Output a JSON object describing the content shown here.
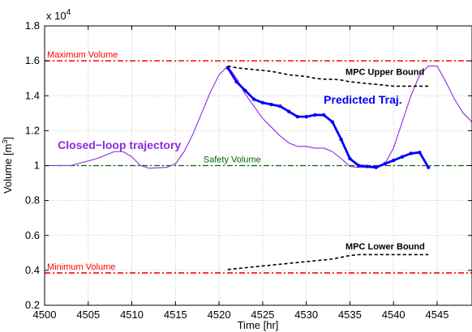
{
  "chart_data": {
    "type": "line",
    "xlabel": "Time [hr]",
    "ylabel": "Volume [m",
    "ylabel_sup": "3",
    "ylabel_close": "]",
    "exponent_prefix": "x 10",
    "exponent_power": "4",
    "xlim": [
      4500,
      4549
    ],
    "ylim": [
      0.2,
      1.8
    ],
    "xticks": [
      "4500",
      "4505",
      "4510",
      "4515",
      "4520",
      "4525",
      "4530",
      "4535",
      "4540",
      "4545"
    ],
    "yticks": [
      "0.2",
      "0.4",
      "0.6",
      "0.8",
      "1",
      "1.2",
      "1.4",
      "1.6",
      "1.8"
    ],
    "grid": true,
    "reference_lines": [
      {
        "label": "Maximum Volume",
        "y": 1.6,
        "color": "#ff0000",
        "style": "dash-dot"
      },
      {
        "label": "Safety Volume",
        "y": 1.0,
        "color": "#006600",
        "style": "dash-dot"
      },
      {
        "label": "Minimum Volume",
        "y": 0.385,
        "color": "#ff0000",
        "style": "dash-dot"
      }
    ],
    "series": [
      {
        "name": "Closed−loop trajectory",
        "color": "#8a2be2",
        "style": "solid",
        "x": [
          4500,
          4503,
          4506,
          4508,
          4509,
          4510,
          4511,
          4512,
          4514,
          4515,
          4516,
          4517,
          4518,
          4519,
          4520,
          4521,
          4522,
          4523,
          4524,
          4525,
          4526,
          4527,
          4528,
          4529,
          4530,
          4531,
          4532,
          4533,
          4534,
          4535,
          4536,
          4537,
          4538,
          4539,
          4540,
          4541,
          4542,
          4543,
          4544,
          4545,
          4546,
          4547,
          4548,
          4549
        ],
        "y": [
          1.0,
          1.0,
          1.04,
          1.08,
          1.08,
          1.05,
          1.0,
          0.985,
          0.99,
          1.01,
          1.08,
          1.18,
          1.3,
          1.42,
          1.52,
          1.57,
          1.5,
          1.41,
          1.34,
          1.27,
          1.22,
          1.17,
          1.13,
          1.11,
          1.11,
          1.1,
          1.1,
          1.08,
          1.04,
          0.995,
          0.99,
          0.99,
          0.985,
          1.01,
          1.1,
          1.25,
          1.4,
          1.52,
          1.57,
          1.57,
          1.48,
          1.38,
          1.3,
          1.25
        ]
      },
      {
        "name": "Predicted Traj.",
        "color": "#0000ff",
        "style": "solid-markers",
        "x": [
          4521,
          4522,
          4523,
          4524,
          4525,
          4526,
          4527,
          4528,
          4529,
          4530,
          4531,
          4532,
          4533,
          4534,
          4535,
          4536,
          4537,
          4538,
          4539,
          4540,
          4541,
          4542,
          4543,
          4544
        ],
        "y": [
          1.56,
          1.48,
          1.43,
          1.38,
          1.36,
          1.35,
          1.34,
          1.31,
          1.28,
          1.28,
          1.29,
          1.29,
          1.25,
          1.15,
          1.04,
          1.0,
          0.995,
          0.99,
          1.01,
          1.03,
          1.05,
          1.07,
          1.075,
          0.99
        ]
      },
      {
        "name": "MPC Upper Bound",
        "color": "#000000",
        "style": "dashed",
        "x": [
          4521,
          4522,
          4523,
          4524,
          4525,
          4526,
          4527,
          4528,
          4529,
          4530,
          4531,
          4532,
          4533,
          4534,
          4535,
          4536,
          4537,
          4538,
          4539,
          4540,
          4541,
          4542,
          4543,
          4544
        ],
        "y": [
          1.57,
          1.56,
          1.555,
          1.55,
          1.545,
          1.54,
          1.53,
          1.52,
          1.515,
          1.51,
          1.5,
          1.495,
          1.495,
          1.49,
          1.48,
          1.475,
          1.47,
          1.465,
          1.46,
          1.455,
          1.455,
          1.455,
          1.455,
          1.455
        ]
      },
      {
        "name": "MPC Lower Bound",
        "color": "#000000",
        "style": "dashed",
        "x": [
          4521,
          4522,
          4523,
          4524,
          4525,
          4526,
          4527,
          4528,
          4529,
          4530,
          4531,
          4532,
          4533,
          4534,
          4535,
          4536,
          4537,
          4538,
          4539,
          4540,
          4541,
          4542,
          4543,
          4544
        ],
        "y": [
          0.405,
          0.41,
          0.415,
          0.42,
          0.425,
          0.43,
          0.435,
          0.44,
          0.445,
          0.45,
          0.455,
          0.46,
          0.465,
          0.475,
          0.485,
          0.49,
          0.49,
          0.49,
          0.49,
          0.49,
          0.49,
          0.49,
          0.49,
          0.49
        ]
      }
    ],
    "annotations": [
      {
        "text": "Closed−loop trajectory",
        "x": 4501.5,
        "y": 1.095,
        "color": "#8a2be2"
      },
      {
        "text": "Predicted Traj.",
        "x": 4532,
        "y": 1.355,
        "color": "#0000ff"
      },
      {
        "text": "MPC Upper Bound",
        "x": 4534.5,
        "y": 1.52,
        "color": "#000000"
      },
      {
        "text": "MPC Lower Bound",
        "x": 4534.5,
        "y": 0.52,
        "color": "#000000"
      }
    ]
  }
}
